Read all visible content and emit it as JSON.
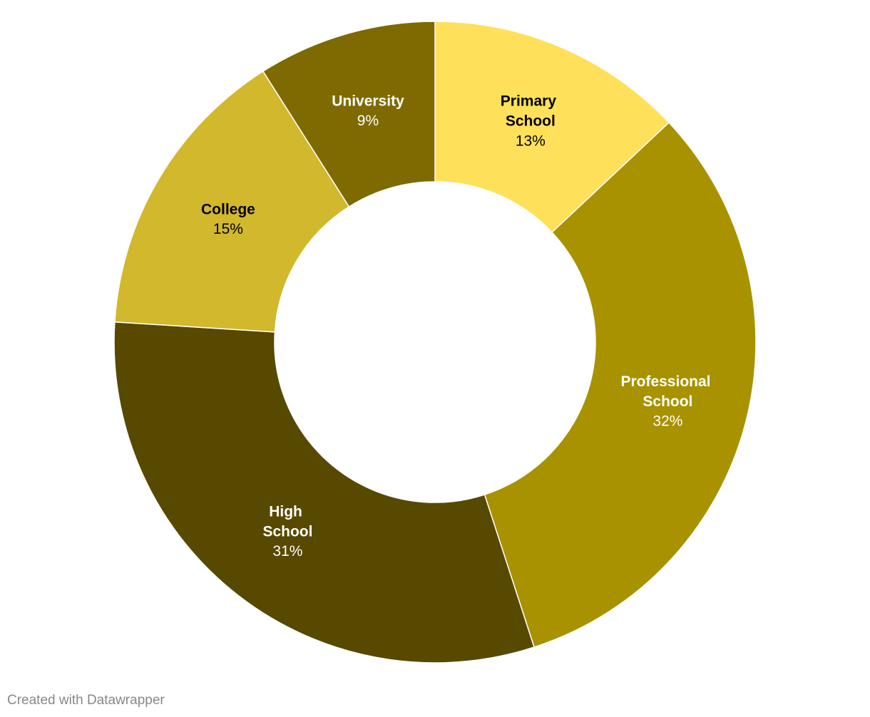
{
  "chart_data": {
    "type": "donut",
    "categories": [
      "Primary School",
      "Professional School",
      "High School",
      "College",
      "University"
    ],
    "values": [
      13,
      32,
      31,
      15,
      9
    ],
    "value_labels": [
      "13%",
      "32%",
      "31%",
      "15%",
      "9%"
    ],
    "colors": [
      "#ffe05a",
      "#a89200",
      "#574900",
      "#d2b82c",
      "#7e6a00"
    ]
  },
  "footer": "Created with Datawrapper"
}
